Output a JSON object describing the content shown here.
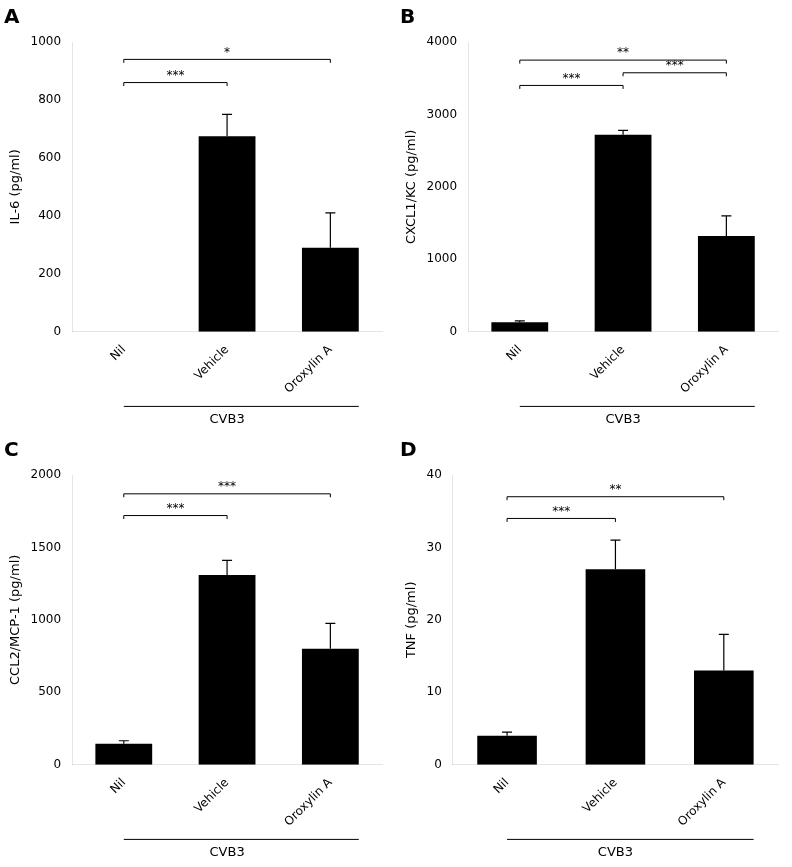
{
  "chart_data": [
    {
      "type": "bar",
      "title": "A",
      "ylabel": "IL-6 (pg/ml)",
      "xlabel": "CVB3",
      "categories": [
        "Nil",
        "Vehicle",
        "Oroxylin A"
      ],
      "values": [
        0,
        675,
        290
      ],
      "errors": [
        0,
        75,
        120
      ],
      "color": "#000000",
      "ylim": [
        0,
        1000
      ],
      "yticks": [
        0,
        200,
        400,
        600,
        800,
        1000
      ],
      "grid": false,
      "significance": [
        {
          "from": "Nil",
          "to": "Vehicle",
          "y": 860,
          "label": "***"
        },
        {
          "from": "Nil",
          "to": "Oroxylin A",
          "y": 940,
          "label": "*"
        }
      ]
    },
    {
      "type": "bar",
      "title": "B",
      "ylabel": "CXCL1/KC (pg/ml)",
      "xlabel": "CVB3",
      "categories": [
        "Nil",
        "Vehicle",
        "Oroxylin A"
      ],
      "values": [
        130,
        2720,
        1320
      ],
      "errors": [
        20,
        60,
        280
      ],
      "color": "#000000",
      "ylim": [
        0,
        4000
      ],
      "yticks": [
        0,
        1000,
        2000,
        3000,
        4000
      ],
      "grid": false,
      "significance": [
        {
          "from": "Nil",
          "to": "Vehicle",
          "y": 3400,
          "label": "***"
        },
        {
          "from": "Nil",
          "to": "Oroxylin A",
          "y": 3750,
          "label": "**"
        },
        {
          "from": "Vehicle",
          "to": "Oroxylin A",
          "y": 3575,
          "label": "***"
        }
      ]
    },
    {
      "type": "bar",
      "title": "C",
      "ylabel": "CCL2/MCP-1 (pg/ml)",
      "xlabel": "CVB3",
      "categories": [
        "Nil",
        "Vehicle",
        "Oroxylin A"
      ],
      "values": [
        145,
        1310,
        800
      ],
      "errors": [
        20,
        100,
        175
      ],
      "color": "#000000",
      "ylim": [
        0,
        2000
      ],
      "yticks": [
        0,
        500,
        1000,
        1500,
        2000
      ],
      "grid": false,
      "significance": [
        {
          "from": "Nil",
          "to": "Vehicle",
          "y": 1720,
          "label": "***"
        },
        {
          "from": "Nil",
          "to": "Oroxylin A",
          "y": 1870,
          "label": "***"
        }
      ]
    },
    {
      "type": "bar",
      "title": "D",
      "ylabel": "TNF (pg/ml)",
      "xlabel": "CVB3",
      "categories": [
        "Nil",
        "Vehicle",
        "Oroxylin A"
      ],
      "values": [
        4,
        27,
        13
      ],
      "errors": [
        0.5,
        4,
        5
      ],
      "color": "#000000",
      "ylim": [
        0,
        40
      ],
      "yticks": [
        0,
        10,
        20,
        30,
        40
      ],
      "grid": false,
      "significance": [
        {
          "from": "Nil",
          "to": "Vehicle",
          "y": 34,
          "label": "***"
        },
        {
          "from": "Nil",
          "to": "Oroxylin A",
          "y": 37,
          "label": "**"
        }
      ]
    }
  ]
}
